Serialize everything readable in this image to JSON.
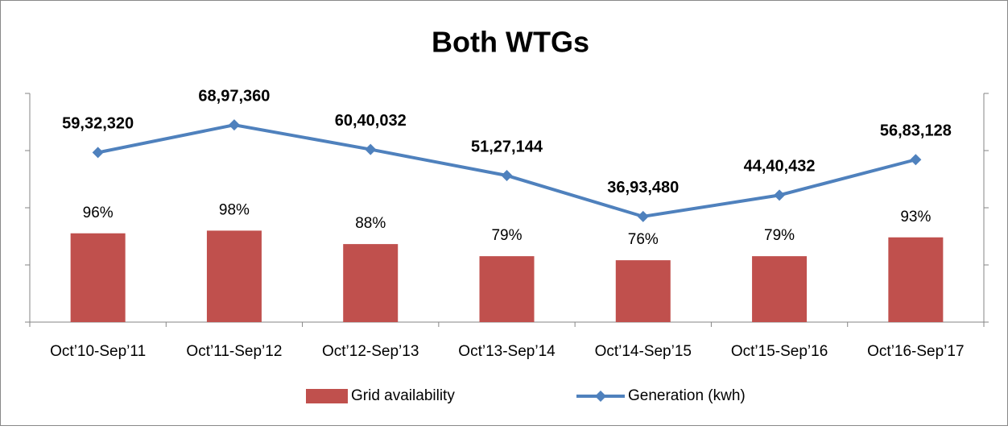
{
  "chart_data": {
    "type": "bar_line",
    "title": "Both WTGs",
    "categories": [
      "Oct’10-Sep’11",
      "Oct’11-Sep’12",
      "Oct’12-Sep’13",
      "Oct’13-Sep’14",
      "Oct’14-Sep’15",
      "Oct’15-Sep’16",
      "Oct’16-Sep’17"
    ],
    "series": [
      {
        "name": "Grid availability",
        "type": "bar",
        "color": "#c0504d",
        "values": [
          96,
          98,
          88,
          79,
          76,
          79,
          93
        ],
        "value_labels": [
          "96%",
          "98%",
          "88%",
          "79%",
          "76%",
          "79%",
          "93%"
        ]
      },
      {
        "name": "Generation (kwh)",
        "type": "line",
        "axis": "y2",
        "color": "#4f81bd",
        "values": [
          5932320,
          6897360,
          6040032,
          5127144,
          3693480,
          4440432,
          5683128
        ],
        "value_labels": [
          "59,32,320",
          "68,97,360",
          "60,40,032",
          "51,27,144",
          "36,93,480",
          "44,40,432",
          "56,83,128"
        ]
      }
    ],
    "ylim": [
      30,
      200
    ],
    "yticks": [
      30,
      72.5,
      115,
      157.5,
      200
    ],
    "y2lim": [
      0,
      8000000
    ],
    "y2ticks": [
      0,
      2000000,
      4000000,
      6000000,
      8000000
    ],
    "legend": "bottom"
  }
}
